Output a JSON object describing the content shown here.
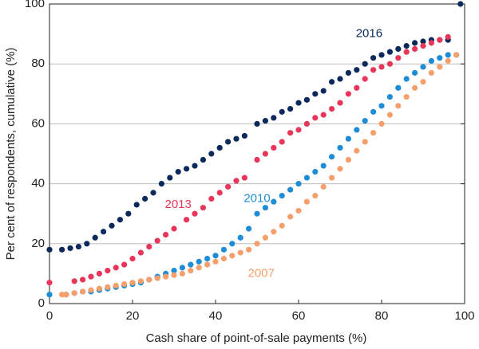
{
  "chart_data": {
    "type": "scatter",
    "x_label": "Cash share of point-of-sale payments (%)",
    "y_label": "Per cent of respondents, cumulative (%)",
    "xlim": [
      0,
      100
    ],
    "xticks": [
      0,
      20,
      40,
      60,
      80,
      100
    ],
    "ylim": [
      0,
      100
    ],
    "yticks": [
      0,
      20,
      40,
      60,
      80,
      100
    ],
    "grid": true,
    "series": [
      {
        "name": "2016",
        "color": "#0b2a5b",
        "x": [
          0,
          3,
          5,
          7,
          9,
          11,
          13,
          15,
          17,
          19,
          21,
          23,
          25,
          27,
          29,
          31,
          33,
          35,
          37,
          39,
          41,
          43,
          45,
          47,
          50,
          52,
          54,
          56,
          58,
          60,
          62,
          64,
          66,
          68,
          70,
          72,
          74,
          76,
          78,
          80,
          82,
          84,
          86,
          88,
          90,
          92,
          94,
          96,
          99
        ],
        "values": [
          18,
          18,
          18.5,
          19,
          20,
          22,
          24,
          26,
          28,
          30,
          33,
          35,
          37,
          40,
          42,
          44,
          45,
          46,
          48,
          50,
          52,
          54,
          55,
          56,
          60,
          61,
          62,
          64,
          65,
          67,
          68,
          70,
          71,
          74,
          75,
          77,
          78,
          80,
          82,
          83,
          84,
          85,
          86,
          87,
          87.5,
          88,
          88,
          88,
          100
        ]
      },
      {
        "name": "2013",
        "color": "#e8365a",
        "x": [
          0,
          6,
          8,
          10,
          12,
          14,
          16,
          18,
          20,
          22,
          24,
          26,
          28,
          30,
          33,
          35,
          37,
          39,
          41,
          43,
          45,
          47,
          50,
          52,
          54,
          56,
          58,
          60,
          62,
          64,
          66,
          68,
          70,
          72,
          74,
          76,
          78,
          80,
          82,
          84,
          86,
          88,
          90,
          92,
          94,
          96
        ],
        "values": [
          7,
          7.5,
          8,
          9,
          10,
          11,
          12,
          13,
          15,
          17,
          19,
          21,
          23,
          25,
          28,
          30,
          32,
          35,
          37,
          39,
          41,
          42,
          48,
          50,
          52,
          54,
          57,
          58,
          60,
          62,
          63,
          65,
          67,
          70,
          72,
          75,
          78,
          79,
          80,
          82,
          84,
          85,
          86,
          87,
          88,
          89
        ]
      },
      {
        "name": "2010",
        "color": "#1f8dd6",
        "x": [
          0,
          4,
          6,
          8,
          10,
          12,
          14,
          16,
          18,
          20,
          22,
          24,
          26,
          28,
          30,
          32,
          34,
          36,
          38,
          40,
          42,
          44,
          46,
          48,
          50,
          52,
          54,
          56,
          58,
          60,
          62,
          64,
          66,
          68,
          70,
          72,
          74,
          76,
          78,
          80,
          82,
          84,
          86,
          88,
          90,
          92,
          94,
          96,
          98
        ],
        "values": [
          3,
          3,
          3.5,
          4,
          4,
          4.5,
          5,
          5.5,
          6,
          6.5,
          7,
          8,
          9,
          10,
          11,
          12,
          13,
          14,
          15,
          16,
          18,
          20,
          22,
          25,
          30,
          32,
          34,
          36,
          38,
          40,
          42,
          44,
          46,
          49,
          52,
          55,
          58,
          61,
          64,
          66,
          69,
          72,
          75,
          77,
          79,
          81,
          82,
          83,
          83
        ]
      },
      {
        "name": "2007",
        "color": "#f5a06c",
        "x": [
          3,
          4,
          6,
          8,
          10,
          12,
          14,
          16,
          18,
          20,
          22,
          24,
          26,
          28,
          30,
          32,
          34,
          36,
          38,
          40,
          42,
          44,
          46,
          48,
          50,
          52,
          54,
          56,
          58,
          60,
          62,
          64,
          66,
          68,
          70,
          72,
          74,
          76,
          78,
          80,
          82,
          84,
          86,
          88,
          90,
          92,
          94,
          96,
          98
        ],
        "values": [
          3,
          3,
          3.5,
          4,
          4.5,
          5,
          5.5,
          6,
          6.5,
          7,
          7.5,
          8,
          8.5,
          9,
          9.5,
          10,
          11,
          12,
          13,
          14,
          15,
          16,
          17,
          18,
          20,
          22,
          24,
          26,
          29,
          31,
          34,
          36,
          39,
          42,
          45,
          48,
          51,
          54,
          57,
          60,
          63,
          66,
          69,
          72,
          74,
          77,
          79,
          81,
          83
        ]
      }
    ]
  }
}
